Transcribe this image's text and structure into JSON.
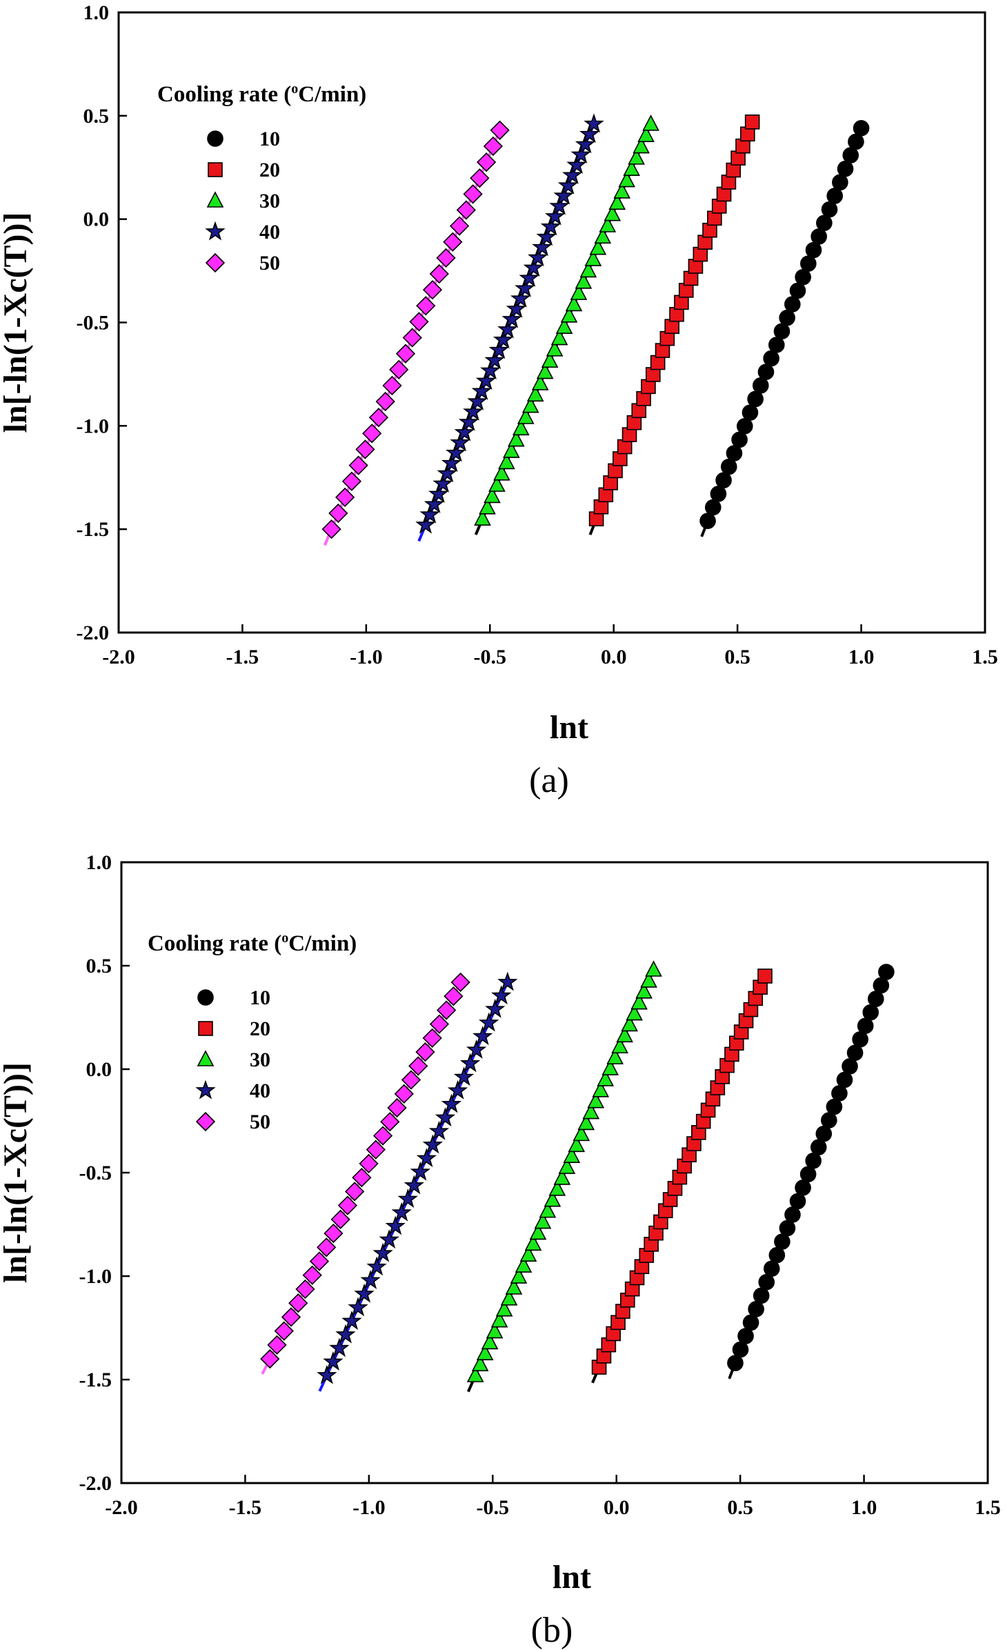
{
  "chart_data": [
    {
      "type": "scatter",
      "panel_label": "(a)",
      "xlabel": "lnt",
      "ylabel": "ln[-ln(1-Xc(T))]",
      "xlim": [
        -2.0,
        1.5
      ],
      "ylim": [
        -2.0,
        1.0
      ],
      "xticks": [
        "-2.0",
        "-1.5",
        "-1.0",
        "-0.5",
        "0.0",
        "0.5",
        "1.0",
        "1.5"
      ],
      "yticks": [
        "-2.0",
        "-1.5",
        "-1.0",
        "-0.5",
        "0.0",
        "0.5",
        "1.0"
      ],
      "legend": {
        "title": "Cooling rate (",
        "title_sup": "o",
        "title_tail": "C/min)",
        "placement": "top-left"
      },
      "series": [
        {
          "name": "10",
          "marker": "circle",
          "color": "#000000",
          "line_color": "#000000",
          "x_start": 0.38,
          "y_start": -1.46,
          "x_end": 1.0,
          "y_end": 0.44,
          "count": 30
        },
        {
          "name": "20",
          "marker": "square",
          "color": "#e8141a",
          "line_color": "#000000",
          "x_start": -0.07,
          "y_start": -1.45,
          "x_end": 0.56,
          "y_end": 0.47,
          "count": 34
        },
        {
          "name": "30",
          "marker": "triangle",
          "color": "#19e619",
          "line_color": "#000000",
          "x_start": -0.53,
          "y_start": -1.45,
          "x_end": 0.15,
          "y_end": 0.46,
          "count": 36
        },
        {
          "name": "40",
          "marker": "star",
          "color": "#1a1a8c",
          "line_color": "#1a1aff",
          "x_start": -0.76,
          "y_start": -1.48,
          "x_end": -0.08,
          "y_end": 0.46,
          "count": 40
        },
        {
          "name": "50",
          "marker": "diamond",
          "color": "#ff2bff",
          "line_color": "#ff66ff",
          "x_start": -1.14,
          "y_start": -1.5,
          "x_end": -0.46,
          "y_end": 0.43,
          "count": 26
        }
      ]
    },
    {
      "type": "scatter",
      "panel_label": "(b)",
      "xlabel": "lnt",
      "ylabel": "ln[-ln(1-Xc(T))]",
      "xlim": [
        -2.0,
        1.5
      ],
      "ylim": [
        -2.0,
        1.0
      ],
      "xticks": [
        "-2.0",
        "-1.5",
        "-1.0",
        "-0.5",
        "0.0",
        "0.5",
        "1.0",
        "1.5"
      ],
      "yticks": [
        "-2.0",
        "-1.5",
        "-1.0",
        "-0.5",
        "0.0",
        "0.5",
        "1.0"
      ],
      "legend": {
        "title": "Cooling rate (",
        "title_sup": "o",
        "title_tail": "C/min)",
        "placement": "top-left"
      },
      "series": [
        {
          "name": "10",
          "marker": "circle",
          "color": "#000000",
          "line_color": "#000000",
          "x_start": 0.48,
          "y_start": -1.42,
          "x_end": 1.09,
          "y_end": 0.47,
          "count": 30
        },
        {
          "name": "20",
          "marker": "square",
          "color": "#e8141a",
          "line_color": "#000000",
          "x_start": -0.07,
          "y_start": -1.44,
          "x_end": 0.6,
          "y_end": 0.45,
          "count": 36
        },
        {
          "name": "30",
          "marker": "triangle",
          "color": "#19e619",
          "line_color": "#000000",
          "x_start": -0.57,
          "y_start": -1.48,
          "x_end": 0.15,
          "y_end": 0.48,
          "count": 38
        },
        {
          "name": "40",
          "marker": "star",
          "color": "#1a1a8c",
          "line_color": "#1a1aff",
          "x_start": -1.17,
          "y_start": -1.48,
          "x_end": -0.44,
          "y_end": 0.42,
          "count": 30
        },
        {
          "name": "50",
          "marker": "diamond",
          "color": "#ff2bff",
          "line_color": "#ff66ff",
          "x_start": -1.4,
          "y_start": -1.4,
          "x_end": -0.63,
          "y_end": 0.42,
          "count": 28
        }
      ]
    }
  ]
}
